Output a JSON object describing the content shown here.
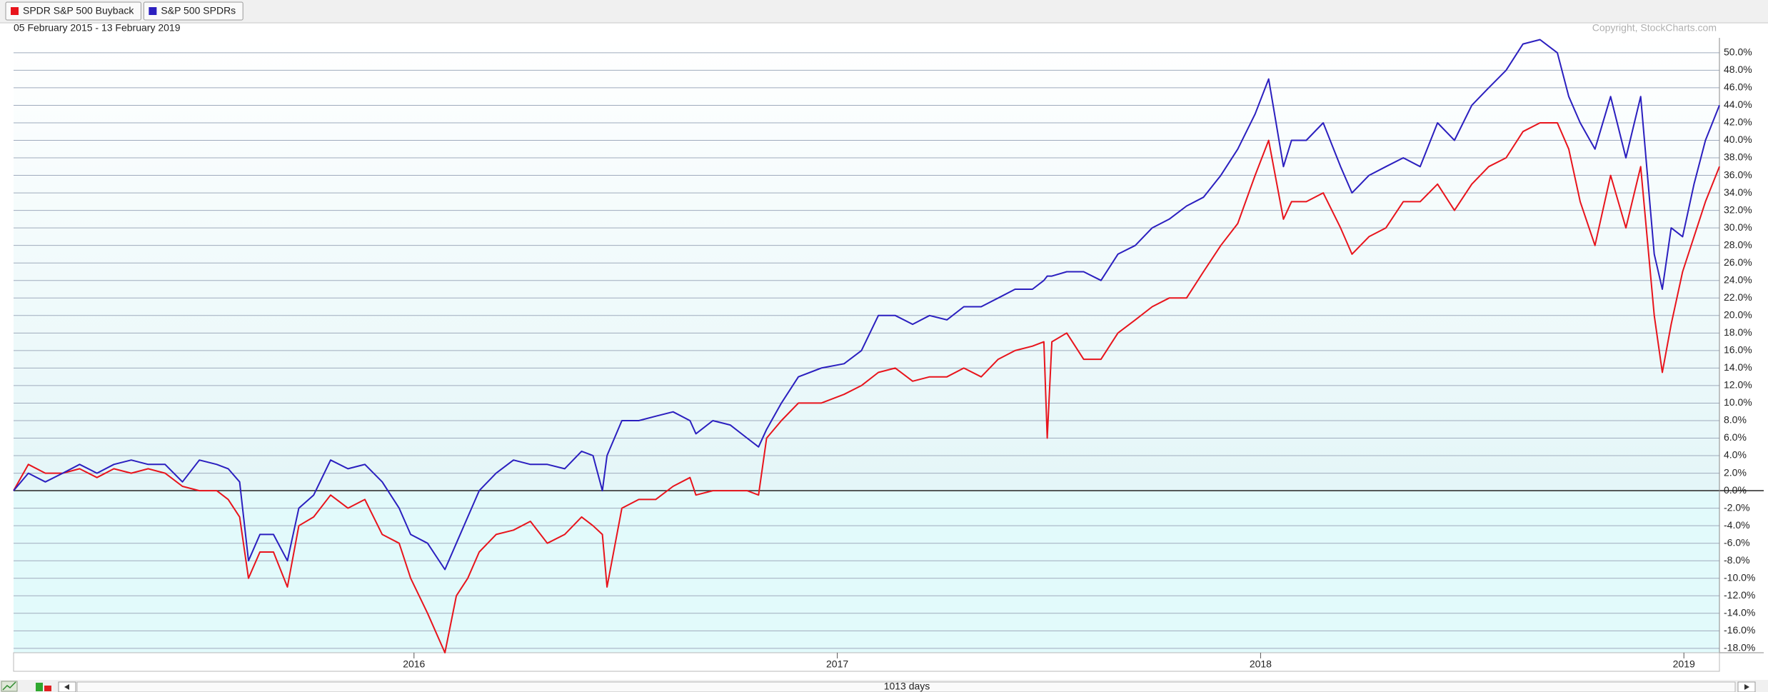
{
  "chart_data": {
    "type": "line",
    "subtitle": "05 February 2015 - 13 February 2019",
    "source": "Copyright, StockCharts.com",
    "footer": "1013 days",
    "x": [
      2015.054,
      2015.089,
      2015.129,
      2015.17,
      2015.21,
      2015.251,
      2015.291,
      2015.332,
      2015.372,
      2015.412,
      2015.453,
      2015.493,
      2015.534,
      2015.561,
      2015.588,
      2015.609,
      2015.636,
      2015.668,
      2015.701,
      2015.728,
      2015.763,
      2015.803,
      2015.844,
      2015.884,
      2015.925,
      2015.965,
      2015.992,
      2016.032,
      2016.073,
      2016.1,
      2016.127,
      2016.154,
      2016.194,
      2016.235,
      2016.275,
      2016.315,
      2016.356,
      2016.396,
      2016.423,
      2016.445,
      2016.456,
      2016.491,
      2016.531,
      2016.571,
      2016.612,
      2016.652,
      2016.666,
      2016.706,
      2016.747,
      2016.787,
      2016.814,
      2016.833,
      2016.868,
      2016.908,
      2016.962,
      2017.016,
      2017.057,
      2017.097,
      2017.137,
      2017.178,
      2017.218,
      2017.259,
      2017.299,
      2017.34,
      2017.38,
      2017.42,
      2017.461,
      2017.488,
      2017.496,
      2017.507,
      2017.542,
      2017.582,
      2017.623,
      2017.663,
      2017.704,
      2017.744,
      2017.784,
      2017.825,
      2017.865,
      2017.906,
      2017.946,
      2017.987,
      2018.019,
      2018.054,
      2018.073,
      2018.108,
      2018.148,
      2018.189,
      2018.216,
      2018.256,
      2018.296,
      2018.337,
      2018.377,
      2018.418,
      2018.458,
      2018.499,
      2018.539,
      2018.58,
      2018.62,
      2018.66,
      2018.701,
      2018.728,
      2018.755,
      2018.79,
      2018.827,
      2018.863,
      2018.898,
      2018.93,
      2018.949,
      2018.97,
      2018.997,
      2019.024,
      2019.051,
      2019.084
    ],
    "series": [
      {
        "name": "SPDR S&P 500 Buyback",
        "color": "#e8141c",
        "values": [
          0,
          3,
          2,
          2,
          2.5,
          1.5,
          2.5,
          2,
          2.5,
          2,
          0.5,
          0,
          0,
          -1,
          -3,
          -10,
          -7,
          -7,
          -11,
          -4,
          -3,
          -0.5,
          -2,
          -1,
          -5,
          -6,
          -10,
          -14,
          -18.5,
          -12,
          -10,
          -7,
          -5,
          -4.5,
          -3.5,
          -6,
          -5,
          -3,
          -4,
          -5,
          -11,
          -2,
          -1,
          -1,
          0.5,
          1.5,
          -0.5,
          0,
          0,
          0,
          -0.5,
          6,
          8,
          10,
          10,
          11,
          12,
          13.5,
          14,
          12.5,
          13,
          13,
          14,
          13,
          15,
          16,
          16.5,
          17,
          6,
          17,
          18,
          15,
          15,
          18,
          19.5,
          21,
          22,
          22,
          25,
          28,
          30.5,
          36,
          40,
          31,
          33,
          33,
          34,
          30,
          27,
          29,
          30,
          33,
          33,
          35,
          32,
          35,
          37,
          38,
          41,
          42,
          42,
          39,
          33,
          28,
          36,
          30,
          37,
          20,
          13.5,
          19,
          25,
          29,
          33,
          37
        ]
      },
      {
        "name": "S&P 500 SPDRs",
        "color": "#2b1fbf",
        "values": [
          0,
          2,
          1,
          2,
          3,
          2,
          3,
          3.5,
          3,
          3,
          1,
          3.5,
          3,
          2.5,
          1,
          -8,
          -5,
          -5,
          -8,
          -2,
          -0.5,
          3.5,
          2.5,
          3,
          1,
          -2,
          -5,
          -6,
          -9,
          -6,
          -3,
          0,
          2,
          3.5,
          3,
          3,
          2.5,
          4.5,
          4,
          0,
          4,
          8,
          8,
          8.5,
          9,
          8,
          6.5,
          8,
          7.5,
          6,
          5,
          7,
          10,
          13,
          14,
          14.5,
          16,
          20,
          20,
          19,
          20,
          19.5,
          21,
          21,
          22,
          23,
          23,
          24,
          24.5,
          24.5,
          25,
          25,
          24,
          27,
          28,
          30,
          31,
          32.5,
          33.5,
          36,
          39,
          43,
          47,
          37,
          40,
          40,
          42,
          37,
          34,
          36,
          37,
          38,
          37,
          42,
          40,
          44,
          46,
          48,
          51,
          51.5,
          50,
          45,
          42,
          39,
          45,
          38,
          45,
          27,
          23,
          30,
          29,
          35,
          40,
          44
        ]
      }
    ],
    "xlim": [
      2015.054,
      2019.084
    ],
    "xticks": [
      2016,
      2017,
      2018,
      2019
    ],
    "ylim": [
      -18.5,
      51.7
    ],
    "yticks": [
      {
        "value": -18,
        "label": "-18.0%"
      },
      {
        "value": -16,
        "label": "-16.0%"
      },
      {
        "value": -14,
        "label": "-14.0%"
      },
      {
        "value": -12,
        "label": "-12.0%"
      },
      {
        "value": -10,
        "label": "-10.0%"
      },
      {
        "value": -8,
        "label": "-8.0%"
      },
      {
        "value": -6,
        "label": "-6.0%"
      },
      {
        "value": -4,
        "label": "-4.0%"
      },
      {
        "value": -2,
        "label": "-2.0%"
      },
      {
        "value": 0,
        "label": "0.0%"
      },
      {
        "value": 2,
        "label": "2.0%"
      },
      {
        "value": 4,
        "label": "4.0%"
      },
      {
        "value": 6,
        "label": "6.0%"
      },
      {
        "value": 8,
        "label": "8.0%"
      },
      {
        "value": 10,
        "label": "10.0%"
      },
      {
        "value": 12,
        "label": "12.0%"
      },
      {
        "value": 14,
        "label": "14.0%"
      },
      {
        "value": 16,
        "label": "16.0%"
      },
      {
        "value": 18,
        "label": "18.0%"
      },
      {
        "value": 20,
        "label": "20.0%"
      },
      {
        "value": 22,
        "label": "22.0%"
      },
      {
        "value": 24,
        "label": "24.0%"
      },
      {
        "value": 26,
        "label": "26.0%"
      },
      {
        "value": 28,
        "label": "28.0%"
      },
      {
        "value": 30,
        "label": "30.0%"
      },
      {
        "value": 32,
        "label": "32.0%"
      },
      {
        "value": 34,
        "label": "34.0%"
      },
      {
        "value": 36,
        "label": "36.0%"
      },
      {
        "value": 38,
        "label": "38.0%"
      },
      {
        "value": 40,
        "label": "40.0%"
      },
      {
        "value": 42,
        "label": "42.0%"
      },
      {
        "value": 44,
        "label": "44.0%"
      },
      {
        "value": 46,
        "label": "46.0%"
      },
      {
        "value": 48,
        "label": "48.0%"
      },
      {
        "value": 50,
        "label": "50.0%"
      }
    ],
    "grid": true
  }
}
